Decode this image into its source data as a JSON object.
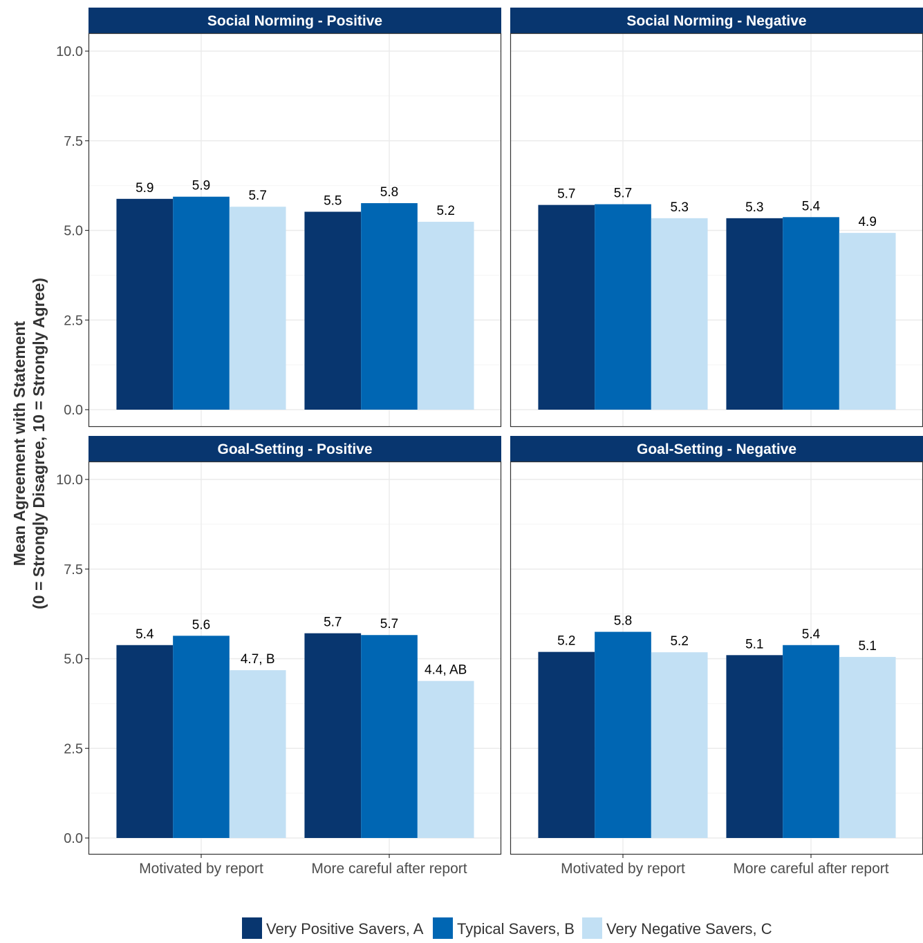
{
  "y_axis_label_line1": "Mean Agreement with Statement",
  "y_axis_label_line2": "(0 = Strongly Disagree, 10 = Strongly Agree)",
  "colors": {
    "series_a": "#08366f",
    "series_b": "#0066b3",
    "series_c": "#c2e0f4",
    "strip": "#08366f",
    "grid": "#ebebeb"
  },
  "chart_data": [
    {
      "type": "bar",
      "title": "Social Norming - Positive",
      "categories": [
        "Motivated by report",
        "More careful after report"
      ],
      "ylim": [
        0,
        10.5
      ],
      "yticks": [
        "0.0",
        "2.5",
        "5.0",
        "7.5",
        "10.0"
      ],
      "series": [
        {
          "name": "Very Positive Savers, A",
          "values": [
            5.88,
            5.52
          ],
          "labels": [
            "5.9",
            "5.5"
          ]
        },
        {
          "name": "Typical Savers, B",
          "values": [
            5.94,
            5.76
          ],
          "labels": [
            "5.9",
            "5.8"
          ]
        },
        {
          "name": "Very Negative Savers, C",
          "values": [
            5.66,
            5.24
          ],
          "labels": [
            "5.7",
            "5.2"
          ]
        }
      ]
    },
    {
      "type": "bar",
      "title": "Social Norming - Negative",
      "categories": [
        "Motivated by report",
        "More careful after report"
      ],
      "ylim": [
        0,
        10.5
      ],
      "yticks": [
        "0.0",
        "2.5",
        "5.0",
        "7.5",
        "10.0"
      ],
      "series": [
        {
          "name": "Very Positive Savers, A",
          "values": [
            5.71,
            5.34
          ],
          "labels": [
            "5.7",
            "5.3"
          ]
        },
        {
          "name": "Typical Savers, B",
          "values": [
            5.73,
            5.37
          ],
          "labels": [
            "5.7",
            "5.4"
          ]
        },
        {
          "name": "Very Negative Savers, C",
          "values": [
            5.34,
            4.93
          ],
          "labels": [
            "5.3",
            "4.9"
          ]
        }
      ]
    },
    {
      "type": "bar",
      "title": "Goal-Setting - Positive",
      "categories": [
        "Motivated by report",
        "More careful after report"
      ],
      "ylim": [
        0,
        10.5
      ],
      "yticks": [
        "0.0",
        "2.5",
        "5.0",
        "7.5",
        "10.0"
      ],
      "series": [
        {
          "name": "Very Positive Savers, A",
          "values": [
            5.38,
            5.71
          ],
          "labels": [
            "5.4",
            "5.7"
          ]
        },
        {
          "name": "Typical Savers, B",
          "values": [
            5.64,
            5.66
          ],
          "labels": [
            "5.6",
            "5.7"
          ]
        },
        {
          "name": "Very Negative Savers, C",
          "values": [
            4.68,
            4.38
          ],
          "labels": [
            "4.7, B",
            "4.4, AB"
          ]
        }
      ]
    },
    {
      "type": "bar",
      "title": "Goal-Setting - Negative",
      "categories": [
        "Motivated by report",
        "More careful after report"
      ],
      "ylim": [
        0,
        10.5
      ],
      "yticks": [
        "0.0",
        "2.5",
        "5.0",
        "7.5",
        "10.0"
      ],
      "series": [
        {
          "name": "Very Positive Savers, A",
          "values": [
            5.19,
            5.1
          ],
          "labels": [
            "5.2",
            "5.1"
          ]
        },
        {
          "name": "Typical Savers, B",
          "values": [
            5.75,
            5.38
          ],
          "labels": [
            "5.8",
            "5.4"
          ]
        },
        {
          "name": "Very Negative Savers, C",
          "values": [
            5.18,
            5.05
          ],
          "labels": [
            "5.2",
            "5.1"
          ]
        }
      ]
    }
  ],
  "legend": {
    "position": "bottom",
    "items": [
      "Very Positive Savers, A",
      "Typical Savers, B",
      "Very Negative Savers, C"
    ]
  }
}
